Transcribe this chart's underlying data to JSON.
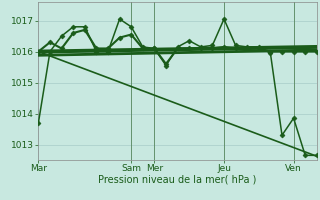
{
  "background_color": "#c8e8e0",
  "grid_color": "#a8ccc8",
  "line_color": "#1a5c1a",
  "xlabel": "Pression niveau de la mer( hPa )",
  "ylim": [
    1012.5,
    1017.6
  ],
  "yticks": [
    1013,
    1014,
    1015,
    1016,
    1017
  ],
  "xtick_labels": [
    "Mar",
    "Sam",
    "Mer",
    "Jeu",
    "Ven"
  ],
  "xtick_positions": [
    0,
    48,
    60,
    96,
    132
  ],
  "xmax": 144,
  "series": [
    {
      "x": [
        0,
        6,
        12,
        18,
        24,
        30,
        36,
        42,
        48,
        54,
        60,
        66,
        72,
        78,
        84,
        90,
        96,
        102,
        108,
        114,
        120,
        126,
        132,
        138,
        144
      ],
      "y": [
        1013.7,
        1016.0,
        1016.5,
        1016.8,
        1016.8,
        1016.0,
        1016.0,
        1017.05,
        1016.8,
        1016.15,
        1016.1,
        1015.55,
        1016.15,
        1016.35,
        1016.15,
        1016.2,
        1017.05,
        1016.2,
        1016.15,
        1016.15,
        1015.95,
        1013.3,
        1013.85,
        1012.65,
        1012.65
      ],
      "linestyle": "-",
      "marker": "D",
      "markersize": 2.5,
      "linewidth": 1.1
    },
    {
      "x": [
        0,
        6,
        12,
        18,
        24,
        30,
        36,
        42,
        48,
        54,
        60,
        66,
        72,
        78,
        84,
        90,
        96,
        102,
        108,
        114,
        120,
        126,
        132,
        138,
        144
      ],
      "y": [
        1016.0,
        1016.3,
        1016.1,
        1016.6,
        1016.7,
        1016.1,
        1016.1,
        1016.45,
        1016.55,
        1016.1,
        1016.1,
        1015.6,
        1016.1,
        1016.1,
        1016.1,
        1016.1,
        1016.15,
        1016.1,
        1016.1,
        1016.1,
        1016.0,
        1016.0,
        1016.0,
        1016.0,
        1016.0
      ],
      "linestyle": "-",
      "marker": "D",
      "markersize": 2.5,
      "linewidth": 1.5
    },
    {
      "x": [
        0,
        144
      ],
      "y": [
        1016.0,
        1016.15
      ],
      "linestyle": "-",
      "marker": "None",
      "markersize": 0,
      "linewidth": 2.8
    },
    {
      "x": [
        0,
        144
      ],
      "y": [
        1015.88,
        1016.05
      ],
      "linestyle": "-",
      "marker": "None",
      "markersize": 0,
      "linewidth": 2.0
    },
    {
      "x": [
        0,
        144
      ],
      "y": [
        1016.0,
        1012.62
      ],
      "linestyle": "-",
      "marker": "None",
      "markersize": 0,
      "linewidth": 1.2
    }
  ],
  "vline_positions": [
    48,
    60,
    96,
    132
  ],
  "vline_color": "#447744",
  "vline_linewidth": 0.7
}
